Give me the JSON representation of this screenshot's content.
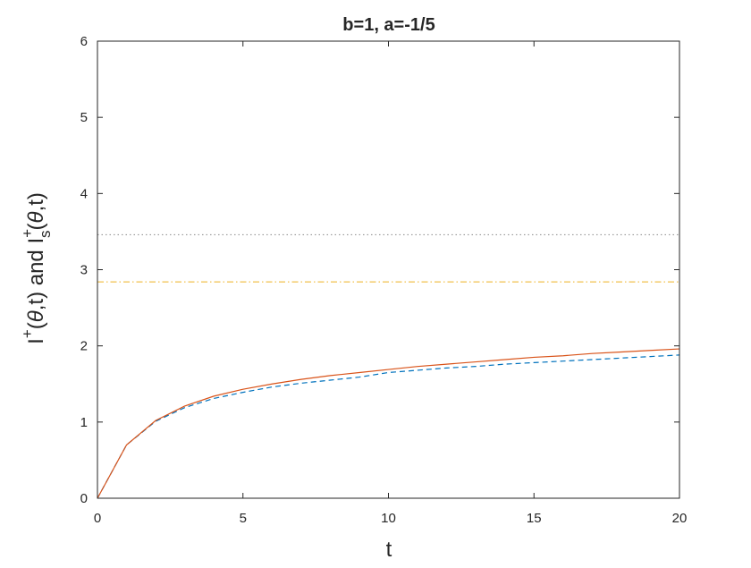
{
  "chart_data": {
    "type": "line",
    "title": "b=1, a=-1/5",
    "xlabel": "t",
    "ylabel": [
      "I",
      "+",
      "(",
      "θ",
      ",t) and I",
      "+",
      "s",
      "(",
      "θ",
      ",t)"
    ],
    "x": [
      0,
      1,
      2,
      3,
      4,
      5,
      6,
      7,
      8,
      9,
      10,
      11,
      12,
      13,
      14,
      15,
      16,
      17,
      18,
      19,
      20
    ],
    "series": [
      {
        "color": "#0072bd",
        "style": "dashed",
        "values": [
          0,
          0.7,
          1.01,
          1.19,
          1.31,
          1.39,
          1.46,
          1.51,
          1.55,
          1.59,
          1.65,
          1.68,
          1.71,
          1.73,
          1.76,
          1.78,
          1.8,
          1.82,
          1.84,
          1.86,
          1.88
        ]
      },
      {
        "color": "#d95319",
        "style": "solid",
        "values": [
          0,
          0.7,
          1.02,
          1.21,
          1.34,
          1.43,
          1.5,
          1.56,
          1.61,
          1.65,
          1.69,
          1.73,
          1.76,
          1.79,
          1.82,
          1.85,
          1.87,
          1.9,
          1.92,
          1.94,
          1.96
        ]
      }
    ],
    "hlines": [
      {
        "color": "#edb120",
        "style": "dashdot",
        "value": 2.84
      },
      {
        "color": "#888888",
        "style": "dotted",
        "value": 3.46
      }
    ],
    "xlim": [
      0,
      20
    ],
    "xticks": [
      0,
      5,
      10,
      15,
      20
    ],
    "ylim": [
      0,
      6
    ],
    "yticks": [
      0,
      1,
      2,
      3,
      4,
      5,
      6
    ]
  }
}
